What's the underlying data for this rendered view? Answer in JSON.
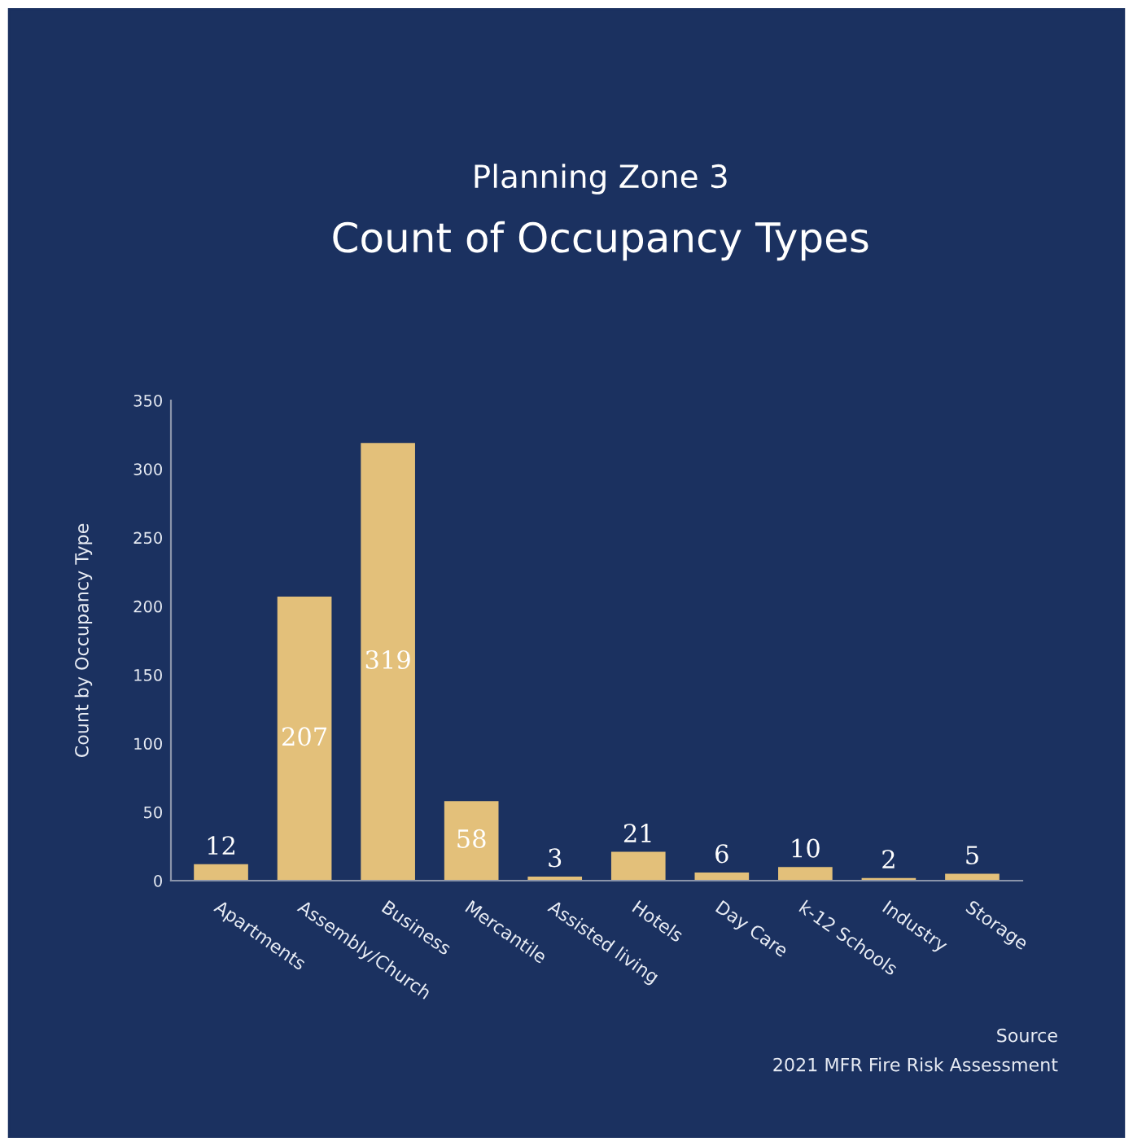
{
  "chart_data": {
    "type": "bar",
    "title": "Planning Zone 3",
    "subtitle": "Count of Occupancy Types",
    "ylabel": "Count by Occupancy Type",
    "categories": [
      "Apartments",
      "Assembly/Church",
      "Business",
      "Mercantile",
      "Assisted living",
      "Hotels",
      "Day Care",
      "k-12 Schools",
      "Industry",
      "Storage"
    ],
    "values": [
      12,
      207,
      319,
      58,
      3,
      21,
      6,
      10,
      2,
      5
    ],
    "color": "#e3c07a",
    "ylim": [
      0,
      350
    ],
    "yticks": [
      0,
      50,
      100,
      150,
      200,
      250,
      300,
      350
    ],
    "grid": false,
    "data_labels": true,
    "annotations": [
      "Source",
      "2021 MFR Fire Risk Assessment"
    ]
  }
}
